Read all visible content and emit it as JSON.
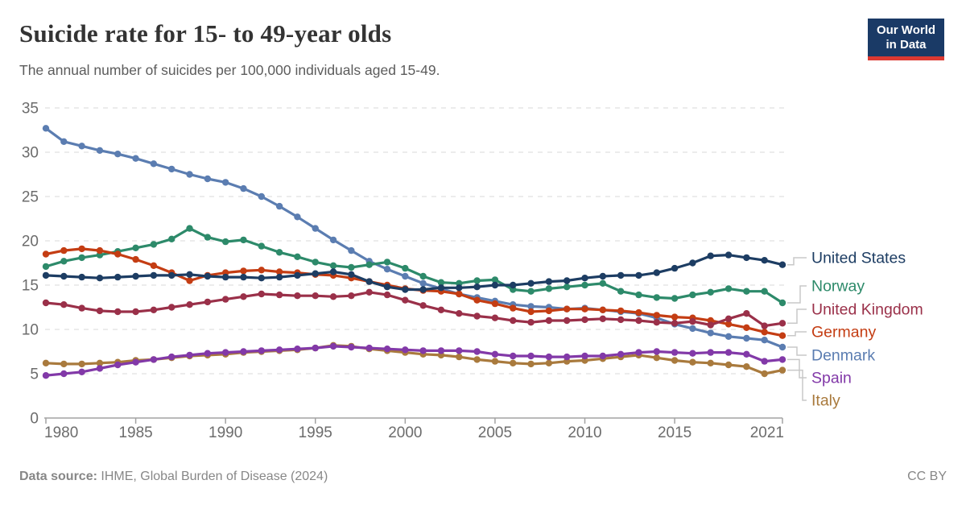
{
  "header": {
    "title": "Suicide rate for 15- to 49-year olds",
    "subtitle": "The annual number of suicides per 100,000 individuals aged 15-49."
  },
  "logo": {
    "line1": "Our World",
    "line2": "in Data",
    "bg_color": "#1a3a66",
    "bar_color": "#dc3932"
  },
  "footer": {
    "source_label": "Data source:",
    "source_value": " IHME, Global Burden of Disease (2024)",
    "license": "CC BY"
  },
  "chart_data": {
    "type": "line",
    "title": "Suicide rate for 15- to 49-year olds",
    "xlabel": "",
    "ylabel": "",
    "x_start": 1980,
    "x_end": 2021,
    "ylim": [
      0,
      35
    ],
    "y_ticks": [
      0,
      5,
      10,
      15,
      20,
      25,
      30,
      35
    ],
    "x_ticks": [
      "1980",
      "1985",
      "1990",
      "1995",
      "2000",
      "2005",
      "2010",
      "2015",
      "2021"
    ],
    "grid": "horizontal dashed",
    "legend_position": "right colored labels with gray connectors",
    "marker": "circle every year",
    "series": [
      {
        "name": "United States",
        "color": "#1d3d63",
        "values": [
          16.1,
          16.0,
          15.9,
          15.8,
          15.9,
          16.0,
          16.1,
          16.1,
          16.2,
          16.0,
          15.9,
          15.9,
          15.8,
          15.9,
          16.1,
          16.3,
          16.5,
          16.2,
          15.4,
          14.8,
          14.5,
          14.5,
          14.7,
          14.7,
          14.8,
          15.0,
          15.0,
          15.2,
          15.4,
          15.5,
          15.8,
          16.0,
          16.1,
          16.1,
          16.4,
          16.9,
          17.5,
          18.3,
          18.4,
          18.1,
          17.8,
          17.3
        ]
      },
      {
        "name": "Norway",
        "color": "#2d8a6a",
        "values": [
          17.1,
          17.7,
          18.1,
          18.4,
          18.8,
          19.2,
          19.6,
          20.2,
          21.4,
          20.4,
          19.9,
          20.1,
          19.4,
          18.7,
          18.2,
          17.6,
          17.2,
          17.0,
          17.3,
          17.6,
          16.9,
          16.0,
          15.3,
          15.2,
          15.5,
          15.6,
          14.5,
          14.3,
          14.6,
          14.8,
          15.0,
          15.2,
          14.3,
          13.9,
          13.6,
          13.5,
          13.9,
          14.2,
          14.6,
          14.3,
          14.3,
          13.0
        ]
      },
      {
        "name": "United Kingdom",
        "color": "#9a3049",
        "values": [
          13.0,
          12.8,
          12.4,
          12.1,
          12.0,
          12.0,
          12.2,
          12.5,
          12.8,
          13.1,
          13.4,
          13.7,
          14.0,
          13.9,
          13.8,
          13.8,
          13.7,
          13.8,
          14.2,
          13.9,
          13.3,
          12.7,
          12.2,
          11.8,
          11.5,
          11.3,
          11.0,
          10.8,
          11.0,
          11.0,
          11.1,
          11.2,
          11.1,
          11.0,
          10.8,
          10.7,
          10.9,
          10.5,
          11.2,
          11.8,
          10.4,
          10.7
        ]
      },
      {
        "name": "Germany",
        "color": "#c43d13",
        "values": [
          18.5,
          18.9,
          19.1,
          18.9,
          18.5,
          17.9,
          17.2,
          16.4,
          15.5,
          16.1,
          16.4,
          16.6,
          16.7,
          16.5,
          16.4,
          16.2,
          16.1,
          15.8,
          15.4,
          15.0,
          14.6,
          14.4,
          14.3,
          14.0,
          13.3,
          12.9,
          12.4,
          12.0,
          12.1,
          12.3,
          12.3,
          12.2,
          12.1,
          11.9,
          11.6,
          11.4,
          11.3,
          11.0,
          10.6,
          10.2,
          9.7,
          9.3
        ]
      },
      {
        "name": "Denmark",
        "color": "#5b7db1",
        "values": [
          32.7,
          31.2,
          30.7,
          30.2,
          29.8,
          29.3,
          28.7,
          28.1,
          27.5,
          27.0,
          26.6,
          25.9,
          25.0,
          23.9,
          22.7,
          21.4,
          20.1,
          18.9,
          17.7,
          16.8,
          16.0,
          15.2,
          14.6,
          14.0,
          13.6,
          13.2,
          12.8,
          12.6,
          12.5,
          12.3,
          12.4,
          12.2,
          12.0,
          11.8,
          11.3,
          10.6,
          10.1,
          9.6,
          9.2,
          9.0,
          8.8,
          8.0
        ]
      },
      {
        "name": "Spain",
        "color": "#8239a8",
        "values": [
          4.8,
          5.0,
          5.2,
          5.6,
          6.0,
          6.3,
          6.6,
          6.9,
          7.1,
          7.3,
          7.4,
          7.5,
          7.6,
          7.7,
          7.8,
          7.9,
          8.1,
          8.0,
          7.9,
          7.8,
          7.7,
          7.6,
          7.6,
          7.6,
          7.5,
          7.2,
          7.0,
          7.0,
          6.9,
          6.9,
          7.0,
          7.0,
          7.2,
          7.4,
          7.5,
          7.4,
          7.3,
          7.4,
          7.4,
          7.2,
          6.4,
          6.6
        ]
      },
      {
        "name": "Italy",
        "color": "#a97a3d",
        "values": [
          6.2,
          6.1,
          6.1,
          6.2,
          6.3,
          6.5,
          6.6,
          6.8,
          7.0,
          7.1,
          7.2,
          7.4,
          7.5,
          7.6,
          7.7,
          7.9,
          8.2,
          8.1,
          7.8,
          7.6,
          7.4,
          7.2,
          7.1,
          6.9,
          6.6,
          6.4,
          6.2,
          6.1,
          6.2,
          6.4,
          6.5,
          6.7,
          6.9,
          7.1,
          6.8,
          6.5,
          6.3,
          6.2,
          6.0,
          5.8,
          5.0,
          5.4
        ]
      }
    ]
  }
}
